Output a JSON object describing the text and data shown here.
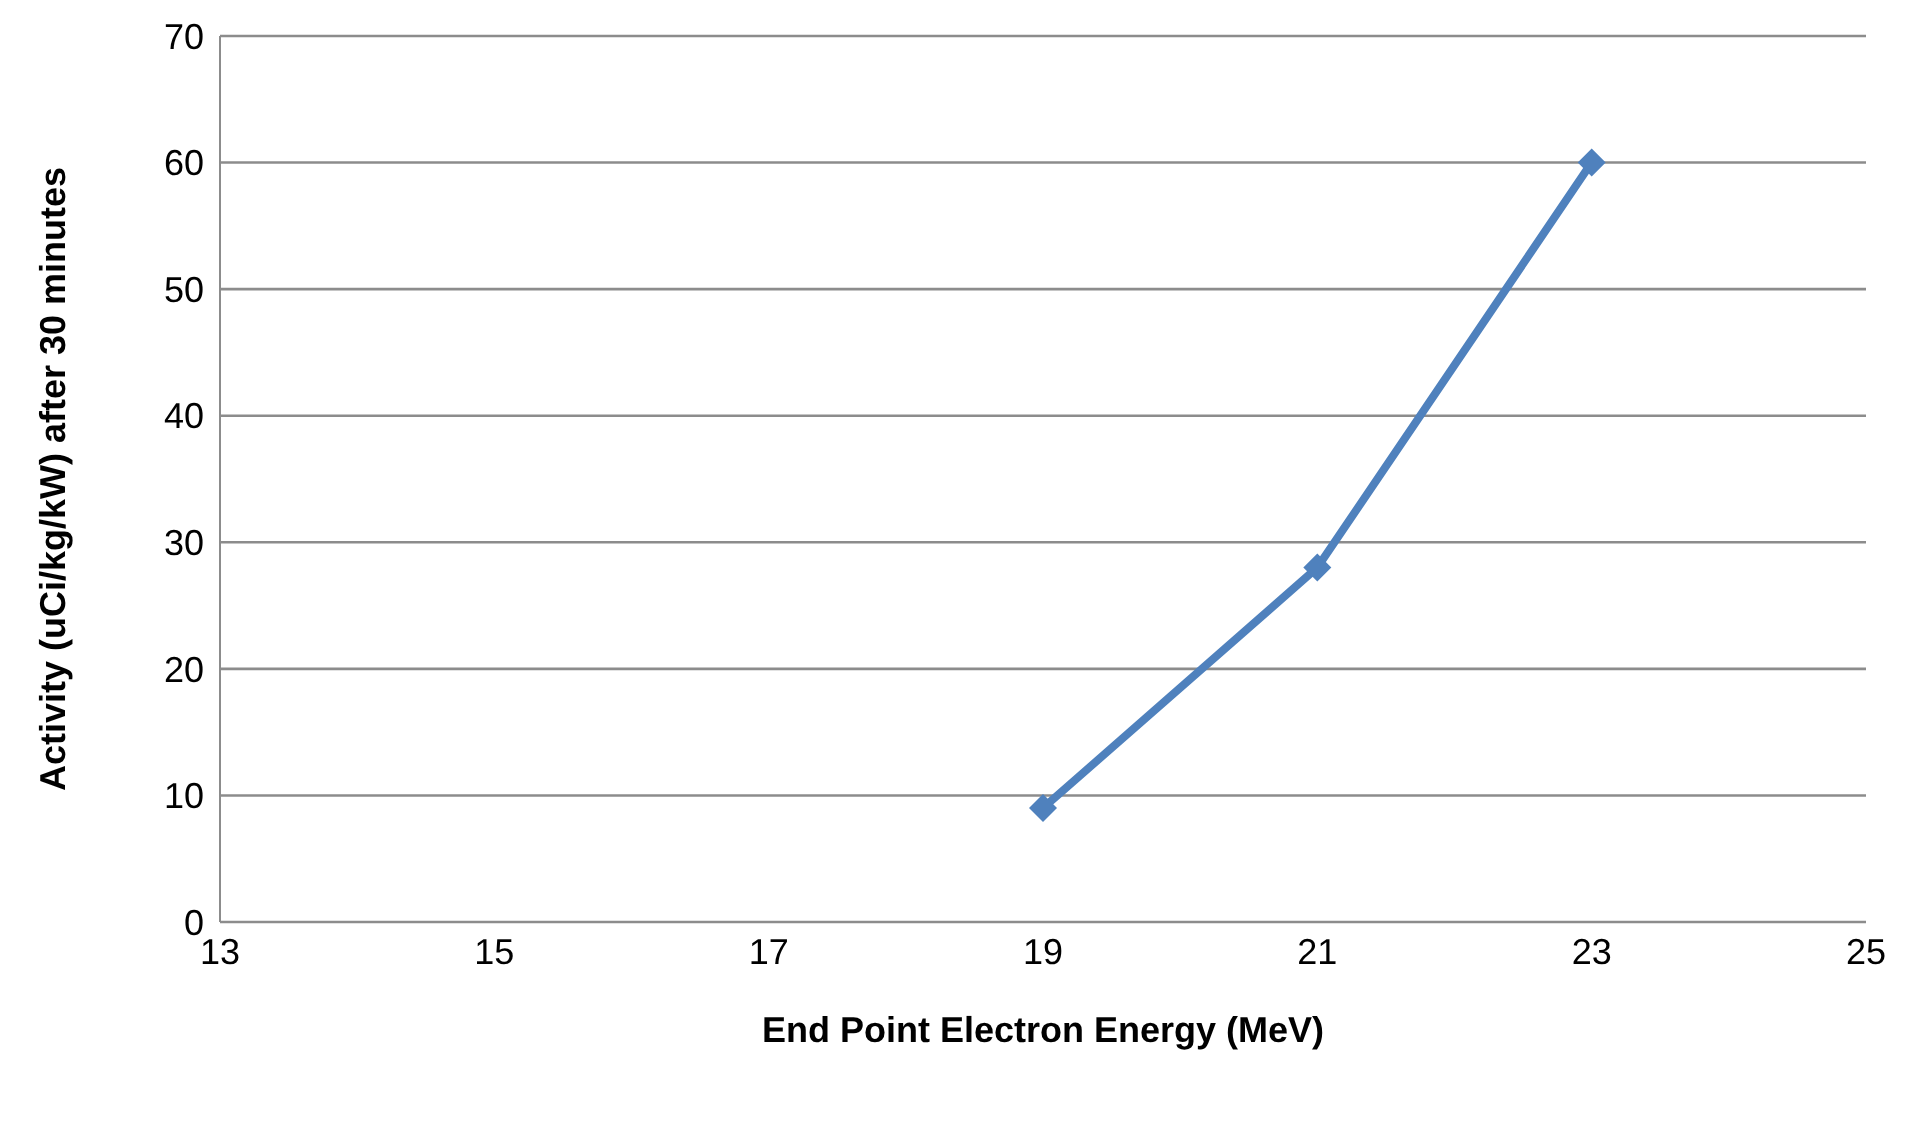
{
  "chart_data": {
    "type": "line",
    "xlabel": "End Point Electron Energy (MeV)",
    "ylabel": "Activity (uCi/kg/kW) after 30 minutes",
    "x": [
      19,
      21,
      23
    ],
    "series": [
      {
        "color": "#4f81bd",
        "values": [
          9,
          28,
          60
        ]
      }
    ],
    "xlim": [
      13,
      25
    ],
    "xticks": [
      13,
      15,
      17,
      19,
      21,
      23,
      25
    ],
    "ylim": [
      0,
      70
    ],
    "yticks": [
      0,
      10,
      20,
      30,
      40,
      50,
      60,
      70
    ],
    "grid": "y",
    "legend": false,
    "marker": "diamond",
    "line_style": "solid"
  }
}
